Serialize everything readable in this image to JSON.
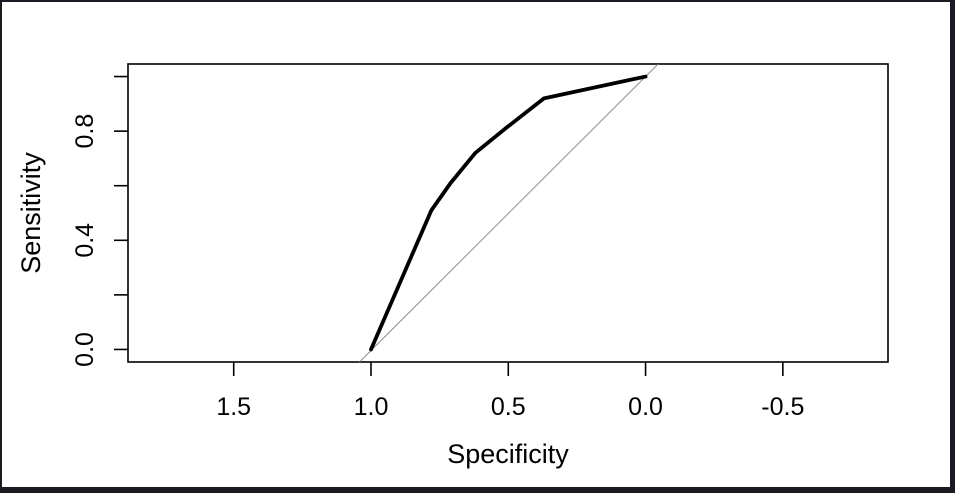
{
  "background": "#ffffff",
  "frame": {
    "color": "#1b1b23"
  },
  "chart_data": {
    "type": "line",
    "title": "",
    "xlabel": "Specificity",
    "ylabel": "Sensitivity",
    "xlim": [
      1.885,
      -0.883
    ],
    "ylim": [
      -0.046,
      1.046
    ],
    "x_ticks": [
      1.5,
      1.0,
      0.5,
      0.0,
      -0.5
    ],
    "x_tick_labels": [
      "1.5",
      "1.0",
      "0.5",
      "0.0",
      "-0.5"
    ],
    "y_ticks": [
      0.0,
      0.2,
      0.4,
      0.6,
      0.8,
      1.0
    ],
    "y_tick_labels": [
      {
        "value": 0.0,
        "label": "0.0"
      },
      {
        "value": 0.4,
        "label": "0.4"
      },
      {
        "value": 0.8,
        "label": "0.8"
      }
    ],
    "axis_color": "#000000",
    "grid": false,
    "legend": false,
    "series": [
      {
        "name": "ROC curve",
        "color": "#000000",
        "width": 3.8,
        "points_spec_sens": [
          [
            1.0,
            0.0
          ],
          [
            0.78,
            0.51
          ],
          [
            0.71,
            0.61
          ],
          [
            0.62,
            0.72
          ],
          [
            0.51,
            0.81
          ],
          [
            0.37,
            0.92
          ],
          [
            0.0,
            1.0
          ]
        ]
      }
    ],
    "reference_line": {
      "name": "chance diagonal",
      "color": "#8f8f8f",
      "width": 1,
      "from": [
        1.042,
        -0.046
      ],
      "to": [
        -0.046,
        1.046
      ]
    }
  }
}
